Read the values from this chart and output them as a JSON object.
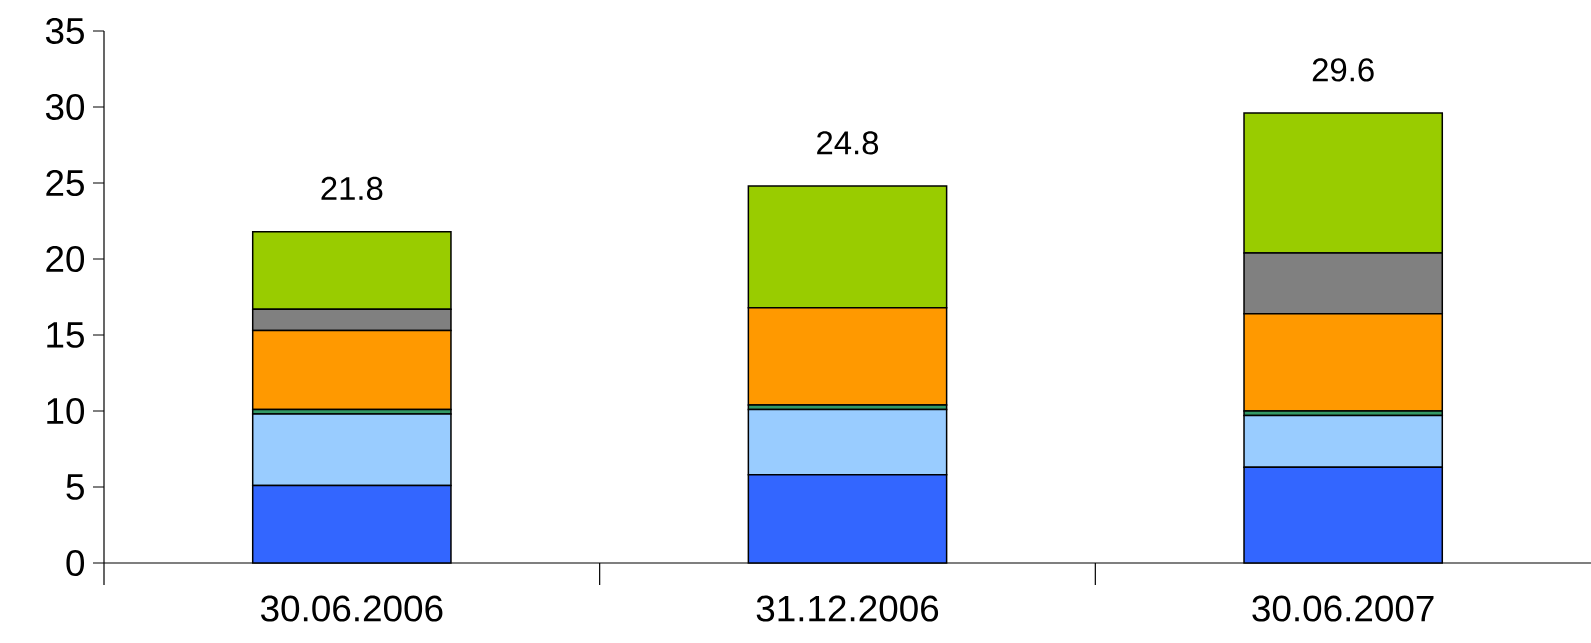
{
  "chart_data": {
    "type": "bar",
    "stacked": true,
    "categories": [
      "30.06.2006",
      "31.12.2006",
      "30.06.2007"
    ],
    "series": [
      {
        "color": "#3366ff",
        "values": [
          5.1,
          5.8,
          6.3
        ]
      },
      {
        "color": "#99ccff",
        "values": [
          4.7,
          4.3,
          3.4
        ]
      },
      {
        "color": "#339966",
        "values": [
          0.3,
          0.3,
          0.3
        ]
      },
      {
        "color": "#ff9900",
        "values": [
          5.2,
          6.4,
          6.4
        ]
      },
      {
        "color": "#808080",
        "values": [
          1.4,
          0,
          4.0
        ]
      },
      {
        "color": "#99cc00",
        "values": [
          5.1,
          8.0,
          9.2
        ]
      }
    ],
    "totals": [
      "21.8",
      "24.8",
      "29.6"
    ],
    "ylim": [
      0,
      35
    ],
    "yticks": [
      0,
      5,
      10,
      15,
      20,
      25,
      30,
      35
    ],
    "grid": false
  }
}
